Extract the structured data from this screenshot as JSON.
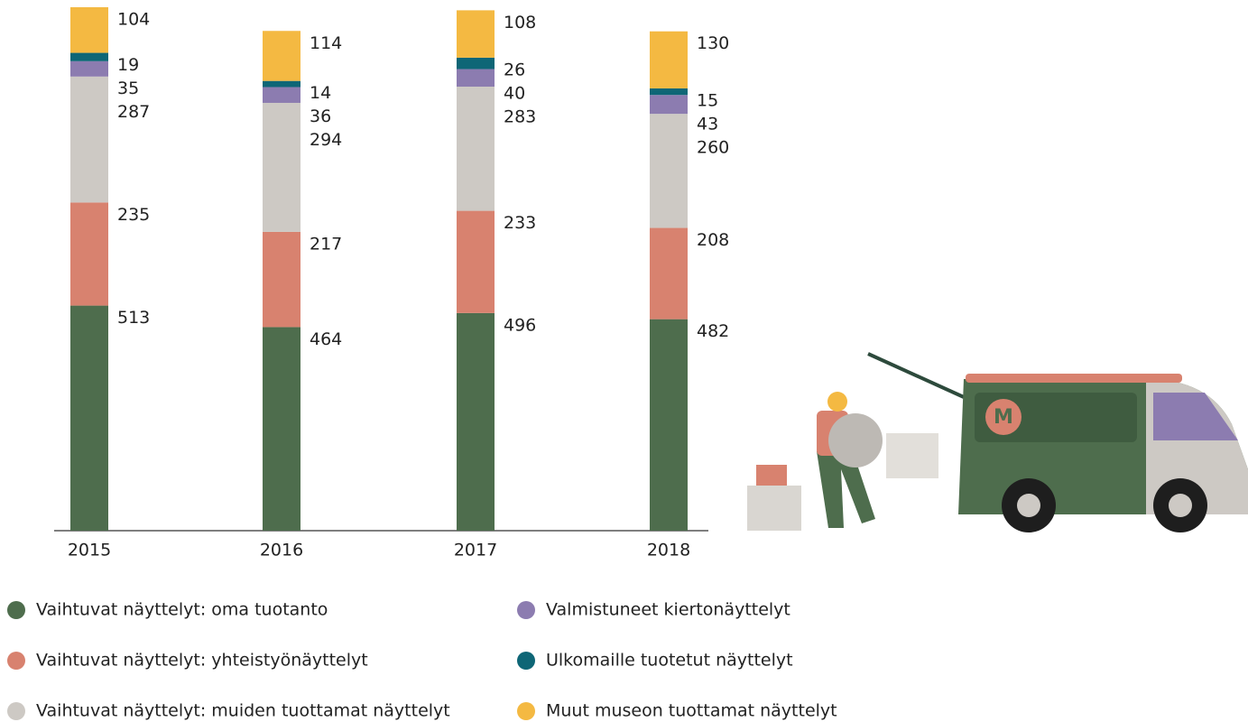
{
  "chart_data": {
    "type": "stacked-bar",
    "categories": [
      "2015",
      "2016",
      "2017",
      "2018"
    ],
    "series": [
      {
        "name": "Vaihtuvat näyttelyt: oma tuotanto",
        "color": "#4e6d4d",
        "values": [
          513,
          464,
          496,
          482
        ]
      },
      {
        "name": "Vaihtuvat näyttelyt: yhteistyönäyttelyt",
        "color": "#d8826f",
        "values": [
          235,
          217,
          233,
          208
        ]
      },
      {
        "name": "Vaihtuvat näyttelyt: muiden tuottamat näyttelyt",
        "color": "#cdc9c4",
        "values": [
          287,
          294,
          283,
          260
        ]
      },
      {
        "name": "Valmistuneet kiertonäyttelyt",
        "color": "#8c7cb0",
        "values": [
          35,
          36,
          40,
          43
        ]
      },
      {
        "name": "Ulkomaille tuotetut näyttelyt",
        "color": "#0e6676",
        "values": [
          19,
          14,
          26,
          15
        ]
      },
      {
        "name": "Muut museon tuottamat näyttelyt",
        "color": "#f4b942",
        "values": [
          104,
          114,
          108,
          130
        ]
      }
    ]
  }
}
